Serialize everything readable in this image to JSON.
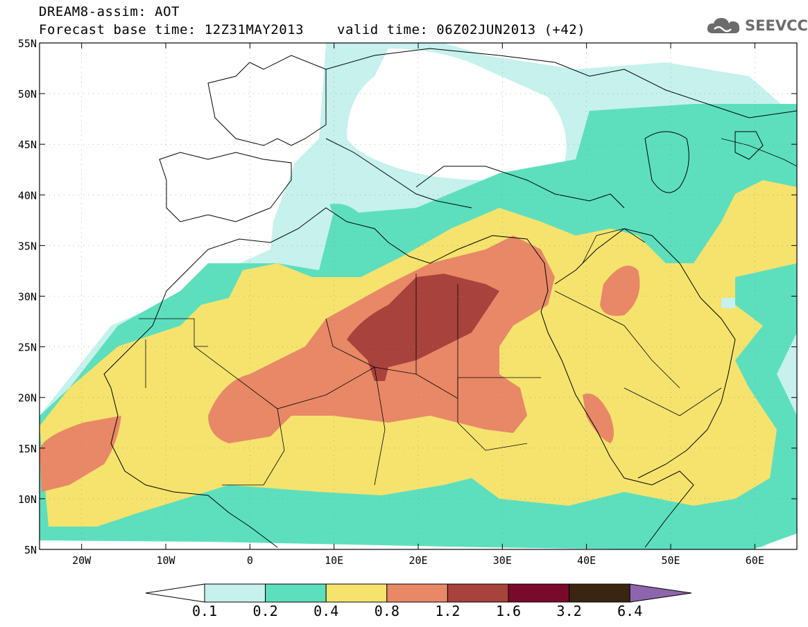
{
  "header": {
    "model_line": "DREAM8-assim: AOT",
    "base_time": "Forecast base time: 12Z31MAY2013",
    "valid_time": "valid time: 06Z02JUN2013 (+42)"
  },
  "logo": {
    "text": "SEEVCCC",
    "icon": "cloud-icon"
  },
  "map": {
    "lat_labels": [
      "55N",
      "50N",
      "45N",
      "40N",
      "35N",
      "30N",
      "25N",
      "20N",
      "15N",
      "10N",
      "5N"
    ],
    "lon_labels": [
      "20W",
      "10W",
      "0",
      "10E",
      "20E",
      "30E",
      "40E",
      "50E",
      "60E"
    ],
    "lat_values": [
      55,
      50,
      45,
      40,
      35,
      30,
      25,
      20,
      15,
      10,
      5
    ],
    "lon_values": [
      -20,
      -10,
      0,
      10,
      20,
      30,
      40,
      50,
      60
    ],
    "extent": {
      "lon_min": -25,
      "lon_max": 65,
      "lat_min": 5,
      "lat_max": 55
    }
  },
  "colors": {
    "c01": "#c6f1ec",
    "c02": "#5ddfbd",
    "c04": "#f5e36e",
    "c08": "#e88867",
    "c12": "#a8423c",
    "c16": "#7a0a2c",
    "c32": "#3a2512",
    "c64": "#8e65ad",
    "below": "#ffffff"
  },
  "legend": {
    "labels": [
      "0.1",
      "0.2",
      "0.4",
      "0.8",
      "1.2",
      "1.6",
      "3.2",
      "6.4"
    ],
    "bins": [
      "c01",
      "c02",
      "c04",
      "c08",
      "c12",
      "c16",
      "c32"
    ]
  }
}
